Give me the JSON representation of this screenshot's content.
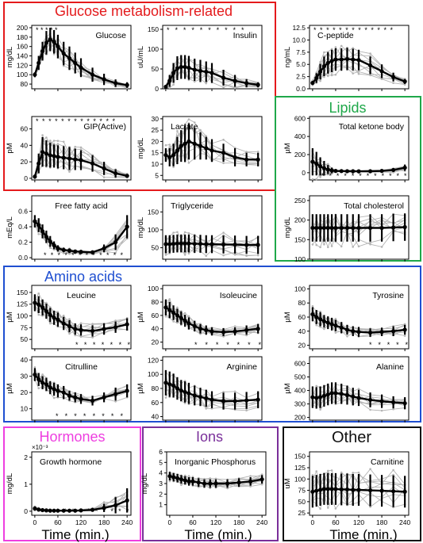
{
  "theme": {
    "glucose_color": "#e41a1c",
    "lipids_color": "#1fa84a",
    "amino_color": "#1f4fd1",
    "hormones_color": "#ee3fe0",
    "ions_color": "#7a2f9a",
    "other_color": "#111111",
    "mean_color": "#000000",
    "individual_color": "#b4b4b4"
  },
  "groups": [
    {
      "id": "glucose",
      "title": "Glucose metabolism-related"
    },
    {
      "id": "lipids",
      "title": "Lipids"
    },
    {
      "id": "amino",
      "title": "Amino acids"
    },
    {
      "id": "hormones",
      "title": "Hormones"
    },
    {
      "id": "ions",
      "title": "Ions"
    },
    {
      "id": "other",
      "title": "Other"
    }
  ],
  "time_axis": {
    "label": "Time (min.)",
    "times": [
      0,
      10,
      20,
      30,
      40,
      50,
      60,
      75,
      90,
      105,
      120,
      150,
      180,
      210,
      240
    ],
    "ticks": [
      0,
      60,
      120,
      180,
      240
    ],
    "xlim": [
      -8,
      250
    ]
  },
  "chart_data": [
    {
      "id": "glucose",
      "type": "line",
      "title": "Glucose",
      "ylabel": "mg/dL",
      "ylim": [
        70,
        205
      ],
      "yticks": [
        80,
        100,
        120,
        140,
        160,
        180,
        200
      ],
      "title_pos": "right",
      "mean": [
        100,
        125,
        150,
        168,
        175,
        170,
        160,
        145,
        135,
        125,
        115,
        100,
        90,
        82,
        78
      ],
      "error": [
        5,
        15,
        20,
        25,
        25,
        25,
        25,
        25,
        25,
        22,
        20,
        15,
        12,
        8,
        6
      ],
      "stars_text": "* * * * *",
      "stars_pos": "top",
      "stars_x": [
        10,
        65
      ]
    },
    {
      "id": "insulin",
      "type": "line",
      "title": "Insulin",
      "ylabel": "uU/mL",
      "ylim": [
        0,
        160
      ],
      "yticks": [
        0,
        50,
        100,
        150
      ],
      "title_pos": "right",
      "mean": [
        5,
        20,
        40,
        52,
        55,
        55,
        53,
        48,
        45,
        43,
        40,
        28,
        20,
        14,
        10
      ],
      "error": [
        3,
        15,
        25,
        30,
        30,
        30,
        30,
        28,
        28,
        26,
        25,
        20,
        15,
        10,
        6
      ],
      "stars_text": "* * * * * *  *  *  *  *",
      "stars_pos": "top",
      "stars_x": [
        10,
        205
      ]
    },
    {
      "id": "cpeptide",
      "type": "line",
      "title": "C-peptide",
      "ylabel": "ng/mL",
      "ylim": [
        0,
        13
      ],
      "yticks": [
        0.0,
        2.5,
        5.0,
        7.5,
        10.0,
        12.5
      ],
      "ytick_labels": [
        "0.0",
        "2.5",
        "5.0",
        "7.5",
        "10.0",
        "12.5"
      ],
      "title_pos": "left",
      "mean": [
        1.2,
        2.2,
        3.5,
        4.6,
        5.3,
        5.7,
        6.0,
        6.0,
        6.1,
        6.0,
        5.9,
        4.8,
        3.6,
        2.4,
        1.5
      ],
      "error": [
        0.4,
        1.0,
        1.6,
        2.0,
        2.2,
        2.3,
        2.3,
        2.3,
        2.3,
        2.2,
        2.1,
        1.8,
        1.4,
        0.9,
        0.5
      ],
      "stars_text": "* * * * * * * *  *  *  *  *  *",
      "stars_pos": "top",
      "stars_x": [
        10,
        210
      ]
    },
    {
      "id": "gip",
      "type": "line",
      "title": "GIP(Active)",
      "ylabel": "pM",
      "ylim": [
        -2,
        75
      ],
      "yticks": [
        0,
        20,
        40,
        60
      ],
      "title_pos": "right",
      "mean": [
        2,
        18,
        32,
        30,
        28,
        27,
        26,
        25,
        24,
        23,
        22,
        18,
        12,
        6,
        3
      ],
      "error": [
        2,
        12,
        18,
        16,
        15,
        14,
        14,
        14,
        14,
        13,
        12,
        10,
        8,
        5,
        2
      ],
      "stars_text": "* * * * * * * * *  *  *  *  *",
      "stars_pos": "top",
      "stars_x": [
        10,
        210
      ]
    },
    {
      "id": "lactate",
      "type": "line",
      "title": "Lactate",
      "ylabel": "mg/dL",
      "ylim": [
        3,
        31
      ],
      "yticks": [
        5,
        10,
        15,
        20,
        25,
        30
      ],
      "title_pos": "left",
      "mean": [
        14,
        13,
        14,
        16,
        18,
        19,
        20,
        19,
        18,
        17,
        16,
        15,
        13,
        12,
        12
      ],
      "error": [
        3,
        4,
        5,
        6,
        7,
        8,
        8,
        7,
        6,
        5,
        5,
        4,
        4,
        3,
        3
      ],
      "stars_text": "",
      "stars_pos": "top",
      "stars_x": [
        0,
        0
      ]
    },
    {
      "id": "ketone",
      "type": "line",
      "title": "Total ketone body",
      "ylabel": "µM",
      "ylim": [
        -80,
        620
      ],
      "yticks": [
        0,
        200,
        400,
        600
      ],
      "title_pos": "right",
      "mean": [
        120,
        100,
        70,
        50,
        35,
        25,
        20,
        18,
        17,
        16,
        15,
        16,
        20,
        30,
        55
      ],
      "error": [
        150,
        130,
        100,
        80,
        50,
        30,
        15,
        10,
        8,
        6,
        6,
        8,
        12,
        20,
        35
      ],
      "stars_text": "* * * * * *  *  *  *  *  *  *",
      "stars_pos": "bottom",
      "stars_x": [
        30,
        245
      ]
    },
    {
      "id": "ffa",
      "type": "line",
      "title": "Free fatty acid",
      "ylabel": "mEq/L",
      "ylim": [
        -0.02,
        0.8
      ],
      "yticks": [
        0.0,
        0.2,
        0.4,
        0.6
      ],
      "ytick_labels": [
        "0.0",
        "0.2",
        "0.4",
        "0.6"
      ],
      "title_pos": "center",
      "mean": [
        0.47,
        0.42,
        0.34,
        0.27,
        0.21,
        0.16,
        0.12,
        0.1,
        0.09,
        0.08,
        0.075,
        0.07,
        0.12,
        0.2,
        0.4
      ],
      "error": [
        0.08,
        0.09,
        0.09,
        0.08,
        0.07,
        0.05,
        0.04,
        0.03,
        0.03,
        0.02,
        0.02,
        0.02,
        0.05,
        0.1,
        0.15
      ],
      "stars_text": "* * * * * *  *  *  *  *  *  *",
      "stars_pos": "bottom",
      "stars_x": [
        30,
        230
      ]
    },
    {
      "id": "triglyceride",
      "type": "line",
      "title": "Triglyceride",
      "ylabel": "mg/dL",
      "ylim": [
        18,
        195
      ],
      "yticks": [
        50,
        100,
        150
      ],
      "title_pos": "left",
      "mean": [
        60,
        60,
        61,
        62,
        62,
        62,
        62,
        61,
        61,
        60,
        60,
        59,
        59,
        58,
        58
      ],
      "error": [
        25,
        25,
        25,
        25,
        25,
        25,
        25,
        25,
        25,
        25,
        25,
        25,
        25,
        25,
        25
      ],
      "stars_text": "",
      "stars_pos": "top",
      "stars_x": [
        0,
        0
      ]
    },
    {
      "id": "cholesterol",
      "type": "line",
      "title": "Total cholesterol",
      "ylabel": "mg/dL",
      "ylim": [
        100,
        262
      ],
      "yticks": [
        100,
        150,
        200,
        250
      ],
      "title_pos": "right",
      "mean": [
        180,
        180,
        180,
        180,
        180,
        180,
        180,
        180,
        180,
        180,
        180,
        180,
        180,
        181,
        182
      ],
      "error": [
        35,
        35,
        35,
        35,
        35,
        35,
        35,
        35,
        35,
        35,
        35,
        35,
        35,
        35,
        35
      ],
      "stars_text": "",
      "stars_pos": "top",
      "stars_x": [
        0,
        0
      ]
    },
    {
      "id": "leucine",
      "type": "line",
      "title": "Leucine",
      "ylabel": "µM",
      "ylim": [
        30,
        165
      ],
      "yticks": [
        50,
        75,
        100,
        125,
        150
      ],
      "title_pos": "center",
      "mean": [
        128,
        124,
        118,
        110,
        102,
        96,
        92,
        84,
        78,
        72,
        70,
        68,
        72,
        76,
        82
      ],
      "error": [
        18,
        18,
        17,
        16,
        15,
        15,
        15,
        14,
        13,
        12,
        12,
        12,
        12,
        12,
        13
      ],
      "stars_text": "*  *  *  *  *  *  *",
      "stars_pos": "bottom",
      "stars_x": [
        110,
        248
      ]
    },
    {
      "id": "isoleucine",
      "type": "line",
      "title": "Isoleucine",
      "ylabel": "µM",
      "ylim": [
        10,
        105
      ],
      "yticks": [
        20,
        40,
        60,
        80,
        100
      ],
      "title_pos": "right",
      "mean": [
        72,
        68,
        64,
        60,
        56,
        52,
        48,
        44,
        40,
        38,
        36,
        35,
        36,
        38,
        40
      ],
      "error": [
        12,
        12,
        11,
        10,
        10,
        9,
        9,
        8,
        7,
        7,
        6,
        6,
        6,
        7,
        7
      ],
      "stars_text": "*  *  *  *  *  *  *",
      "stars_pos": "bottom",
      "stars_x": [
        80,
        248
      ]
    },
    {
      "id": "tyrosine",
      "type": "line",
      "title": "Tyrosine",
      "ylabel": "µM",
      "ylim": [
        15,
        105
      ],
      "yticks": [
        20,
        40,
        60,
        80,
        100
      ],
      "title_pos": "right",
      "mean": [
        64,
        60,
        57,
        54,
        52,
        50,
        48,
        45,
        42,
        40,
        39,
        38,
        39,
        40,
        42
      ],
      "error": [
        10,
        10,
        10,
        9,
        9,
        9,
        8,
        8,
        7,
        7,
        7,
        6,
        6,
        7,
        7
      ],
      "stars_text": "*  *  *  *  *",
      "stars_pos": "bottom",
      "stars_x": [
        150,
        248
      ]
    },
    {
      "id": "citrulline",
      "type": "line",
      "title": "Citrulline",
      "ylabel": "µM",
      "ylim": [
        3,
        42
      ],
      "yticks": [
        10,
        20,
        30,
        40
      ],
      "title_pos": "center",
      "mean": [
        31,
        28,
        26,
        25,
        23,
        22,
        21,
        20,
        18,
        17,
        16,
        15,
        17,
        19,
        21
      ],
      "error": [
        4,
        4,
        4,
        4,
        4,
        4,
        4,
        4,
        3,
        3,
        3,
        3,
        3,
        4,
        4
      ],
      "stars_text": "* * *  *  *  *  *  *",
      "stars_pos": "bottom",
      "stars_x": [
        60,
        230
      ]
    },
    {
      "id": "arginine",
      "type": "line",
      "title": "Arginine",
      "ylabel": "µM",
      "ylim": [
        35,
        125
      ],
      "yticks": [
        40,
        60,
        80,
        100,
        120
      ],
      "title_pos": "right",
      "mean": [
        88,
        86,
        84,
        80,
        77,
        75,
        73,
        70,
        68,
        66,
        64,
        62,
        62,
        63,
        64
      ],
      "error": [
        18,
        18,
        17,
        16,
        15,
        15,
        15,
        14,
        13,
        12,
        12,
        12,
        12,
        12,
        12
      ],
      "stars_text": "",
      "stars_pos": "top",
      "stars_x": [
        0,
        0
      ]
    },
    {
      "id": "alanine",
      "type": "line",
      "title": "Alanine",
      "ylabel": "µM",
      "ylim": [
        180,
        650
      ],
      "yticks": [
        200,
        300,
        400,
        500,
        600
      ],
      "title_pos": "right",
      "mean": [
        350,
        345,
        350,
        360,
        370,
        380,
        380,
        375,
        365,
        355,
        345,
        330,
        320,
        312,
        305
      ],
      "error": [
        80,
        80,
        80,
        80,
        80,
        80,
        80,
        75,
        70,
        65,
        60,
        55,
        50,
        45,
        45
      ],
      "stars_text": "",
      "stars_pos": "top",
      "stars_x": [
        0,
        0
      ]
    },
    {
      "id": "gh",
      "type": "line",
      "title": "Growth hormone",
      "ylabel": "mg/dL",
      "ylim": [
        -0.15,
        2.2
      ],
      "yticks": [
        0,
        1,
        2
      ],
      "ytick_labels": [
        "0",
        "1",
        "2"
      ],
      "title_pos": "left",
      "scale_note": "×10⁻³",
      "mean": [
        0.1,
        0.06,
        0.04,
        0.03,
        0.02,
        0.02,
        0.02,
        0.02,
        0.02,
        0.02,
        0.03,
        0.05,
        0.12,
        0.22,
        0.4
      ],
      "error": [
        0.08,
        0.05,
        0.03,
        0.02,
        0.02,
        0.02,
        0.02,
        0.02,
        0.02,
        0.02,
        0.03,
        0.05,
        0.15,
        0.3,
        0.45
      ],
      "stars_text": "* * * * * *  *  *  *  *  *  *",
      "stars_pos": "bottom",
      "stars_x": [
        22,
        245
      ]
    },
    {
      "id": "phosphorus",
      "type": "line",
      "title": "Inorganic Phosphorus",
      "ylabel": "mg/dL",
      "ylim": [
        0,
        6
      ],
      "yticks": [
        1,
        2,
        3,
        4,
        5,
        6
      ],
      "title_pos": "left",
      "mean": [
        3.7,
        3.6,
        3.5,
        3.4,
        3.3,
        3.2,
        3.2,
        3.1,
        3.0,
        3.0,
        3.0,
        3.0,
        3.1,
        3.2,
        3.4
      ],
      "error": [
        0.4,
        0.4,
        0.4,
        0.4,
        0.4,
        0.4,
        0.4,
        0.4,
        0.4,
        0.4,
        0.4,
        0.4,
        0.4,
        0.4,
        0.4
      ],
      "stars_text": "",
      "stars_pos": "top",
      "stars_x": [
        0,
        0
      ]
    },
    {
      "id": "carnitine",
      "type": "line",
      "title": "Carnitine",
      "ylabel": "uM",
      "ylim": [
        20,
        160
      ],
      "yticks": [
        25,
        50,
        75,
        100,
        125,
        150
      ],
      "title_pos": "right",
      "mean": [
        72,
        74,
        76,
        78,
        78,
        78,
        78,
        77,
        77,
        76,
        76,
        75,
        74,
        73,
        72
      ],
      "error": [
        35,
        35,
        35,
        35,
        35,
        35,
        35,
        35,
        35,
        35,
        35,
        35,
        35,
        35,
        35
      ],
      "stars_text": "",
      "stars_pos": "top",
      "stars_x": [
        0,
        0
      ]
    }
  ]
}
